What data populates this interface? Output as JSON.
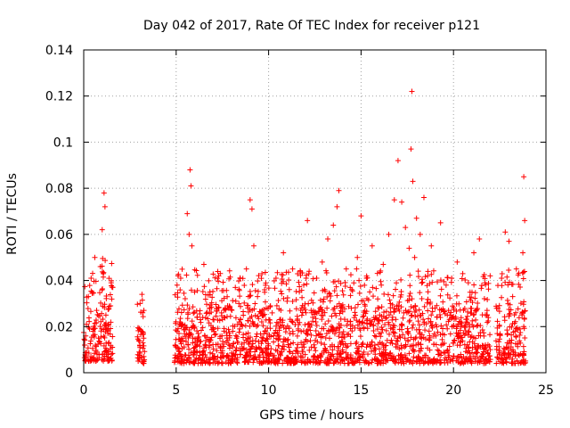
{
  "chart_data": {
    "type": "scatter",
    "title": "Day 042 of 2017, Rate Of TEC Index for receiver p121",
    "xlabel": "GPS time / hours",
    "ylabel": "ROTI / TECUs",
    "xlim": [
      0,
      25
    ],
    "ylim": [
      0,
      0.14
    ],
    "xticks": [
      0,
      5,
      10,
      15,
      20,
      25
    ],
    "xtick_labels": [
      "0",
      "5",
      "10",
      "15",
      "20",
      "25"
    ],
    "yticks": [
      0,
      0.02,
      0.04,
      0.06,
      0.08,
      0.1,
      0.12,
      0.14
    ],
    "ytick_labels": [
      "0",
      "0.02",
      "0.04",
      "0.06",
      "0.08",
      "0.1",
      "0.12",
      "0.14"
    ],
    "grid": true,
    "marker": "+",
    "color": "#ff0000",
    "series": [
      {
        "name": "ROTI",
        "x": [
          0.05,
          0.15,
          0.25,
          0.4,
          0.5,
          0.6,
          0.7,
          0.8,
          0.9,
          1.0,
          1.1,
          1.15,
          1.2,
          1.3,
          1.45,
          1.55,
          3.0,
          3.05,
          3.1,
          3.15,
          3.2,
          3.25,
          4.95,
          5.05,
          5.1,
          5.2,
          5.35,
          5.6,
          5.7,
          5.75,
          5.8,
          5.85,
          5.9,
          6.0,
          6.2,
          6.5,
          6.8,
          7.0,
          7.3,
          7.6,
          7.9,
          8.2,
          8.5,
          8.8,
          9.0,
          9.1,
          9.2,
          9.4,
          9.6,
          9.8,
          10.1,
          10.4,
          10.6,
          10.8,
          11.0,
          11.3,
          11.6,
          11.9,
          12.1,
          12.3,
          12.6,
          12.9,
          13.2,
          13.5,
          13.7,
          13.8,
          13.9,
          14.2,
          14.5,
          14.8,
          15.0,
          15.3,
          15.6,
          15.9,
          16.2,
          16.5,
          16.8,
          17.0,
          17.2,
          17.4,
          17.6,
          17.7,
          17.75,
          17.8,
          17.9,
          18.0,
          18.2,
          18.4,
          18.6,
          18.8,
          19.0,
          19.3,
          19.6,
          19.9,
          20.2,
          20.5,
          20.8,
          21.1,
          21.4,
          21.7,
          22.4,
          22.6,
          22.8,
          23.0,
          23.2,
          23.4,
          23.6,
          23.75,
          23.8,
          23.85
        ],
        "y": [
          0.012,
          0.021,
          0.033,
          0.041,
          0.018,
          0.05,
          0.027,
          0.015,
          0.046,
          0.062,
          0.078,
          0.072,
          0.025,
          0.019,
          0.029,
          0.011,
          0.009,
          0.03,
          0.018,
          0.034,
          0.013,
          0.007,
          0.012,
          0.038,
          0.042,
          0.022,
          0.015,
          0.069,
          0.06,
          0.088,
          0.081,
          0.055,
          0.02,
          0.035,
          0.014,
          0.047,
          0.028,
          0.019,
          0.042,
          0.024,
          0.016,
          0.037,
          0.021,
          0.045,
          0.075,
          0.071,
          0.055,
          0.033,
          0.026,
          0.018,
          0.029,
          0.041,
          0.023,
          0.052,
          0.031,
          0.045,
          0.019,
          0.038,
          0.066,
          0.027,
          0.041,
          0.048,
          0.058,
          0.064,
          0.072,
          0.079,
          0.028,
          0.045,
          0.036,
          0.05,
          0.068,
          0.041,
          0.055,
          0.032,
          0.047,
          0.06,
          0.075,
          0.092,
          0.074,
          0.063,
          0.054,
          0.097,
          0.122,
          0.083,
          0.05,
          0.067,
          0.06,
          0.076,
          0.042,
          0.055,
          0.028,
          0.065,
          0.038,
          0.041,
          0.048,
          0.043,
          0.039,
          0.052,
          0.058,
          0.039,
          0.028,
          0.041,
          0.061,
          0.057,
          0.033,
          0.045,
          0.019,
          0.052,
          0.085,
          0.066
        ]
      }
    ],
    "background_band": {
      "description": "dense red cluster of points spanning 0 to 0.03 TECUs across most hours",
      "segments": [
        {
          "x_start": 0.0,
          "x_end": 1.6,
          "y_low": 0.005,
          "y_high": 0.035
        },
        {
          "x_start": 2.9,
          "x_end": 3.3,
          "y_low": 0.004,
          "y_high": 0.02
        },
        {
          "x_start": 4.9,
          "x_end": 19.2,
          "y_low": 0.004,
          "y_high": 0.03
        },
        {
          "x_start": 19.2,
          "x_end": 22.0,
          "y_low": 0.004,
          "y_high": 0.028
        },
        {
          "x_start": 22.3,
          "x_end": 23.9,
          "y_low": 0.004,
          "y_high": 0.03
        }
      ]
    }
  }
}
